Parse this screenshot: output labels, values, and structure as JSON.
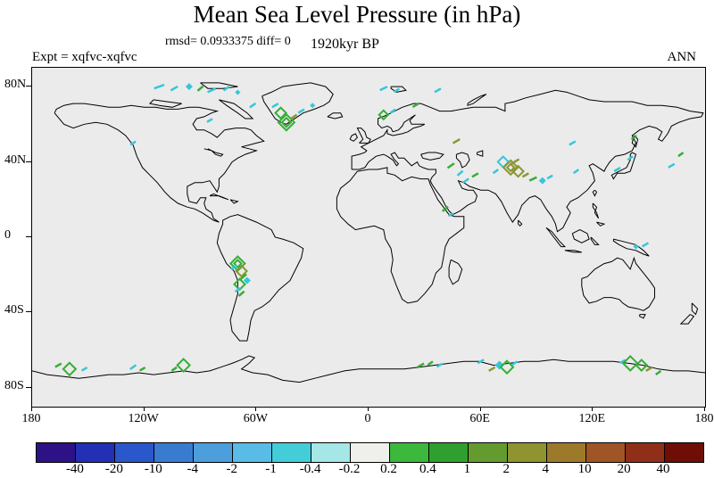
{
  "header": {
    "title": "Mean Sea Level Pressure (in hPa)",
    "stats": "rmsd= 0.0933375 diff= 0",
    "time_label": "1920kyr BP",
    "experiment": "Expt = xqfvc-xqfvc",
    "season": "ANN"
  },
  "axes": {
    "lat_ticks": [
      {
        "label": "80N",
        "lat": 80
      },
      {
        "label": "40N",
        "lat": 40
      },
      {
        "label": "0",
        "lat": 0
      },
      {
        "label": "40S",
        "lat": -40
      },
      {
        "label": "80S",
        "lat": -80
      }
    ],
    "lon_ticks": [
      {
        "label": "180",
        "lon": -180
      },
      {
        "label": "120W",
        "lon": -120
      },
      {
        "label": "60W",
        "lon": -60
      },
      {
        "label": "0",
        "lon": 0
      },
      {
        "label": "60E",
        "lon": 60
      },
      {
        "label": "120E",
        "lon": 120
      },
      {
        "label": "180",
        "lon": 180
      }
    ]
  },
  "chart_data": {
    "type": "heatmap",
    "title": "Mean Sea Level Pressure (in hPa)",
    "projection": "equirectangular",
    "lon_range": [
      -180,
      180
    ],
    "lat_range": [
      -90,
      90
    ],
    "rmsd": 0.0933375,
    "diff": 0,
    "time": "1920kyr BP",
    "experiment": "xqfvc-xqfvc",
    "season": "ANN",
    "map_background": "#ebebeb",
    "colorbar": {
      "levels": [
        -40,
        -20,
        -10,
        -4,
        -2,
        -1,
        -0.4,
        -0.2,
        0.2,
        0.4,
        1,
        2,
        4,
        10,
        20,
        40
      ],
      "labels": [
        "-40",
        "-20",
        "-10",
        "-4",
        "-2",
        "-1",
        "-0.4",
        "-0.2",
        "0.2",
        "0.4",
        "1",
        "2",
        "4",
        "10",
        "20",
        "40"
      ],
      "colors": [
        "#2D1186",
        "#232FB4",
        "#2B57CC",
        "#3A7BD2",
        "#4D9EDC",
        "#58BCE6",
        "#43CDD8",
        "#A5E6E6",
        "#EFEFEB",
        "#3CB83C",
        "#2FA02F",
        "#649B2F",
        "#8F9430",
        "#9C7A2A",
        "#9F5526",
        "#8F2F1A",
        "#6E0E06"
      ]
    },
    "mark_colors": {
      "cyan": "#35C6DA",
      "green": "#35AE35",
      "olive": "#8C9630"
    },
    "anomaly_marks": [
      {
        "lon": -112,
        "lat": 80,
        "shape": "dash",
        "c": "cyan",
        "s": 12,
        "rot": -20
      },
      {
        "lon": -104,
        "lat": 79,
        "shape": "dash",
        "c": "cyan",
        "s": 9,
        "rot": -30
      },
      {
        "lon": -96,
        "lat": 80,
        "shape": "fdiamond",
        "c": "cyan",
        "s": 4
      },
      {
        "lon": -90,
        "lat": 79,
        "shape": "dash",
        "c": "green",
        "s": 8,
        "rot": -40
      },
      {
        "lon": -84,
        "lat": 78,
        "shape": "dash",
        "c": "cyan",
        "s": 10,
        "rot": -25
      },
      {
        "lon": -76,
        "lat": 79,
        "shape": "dash",
        "c": "cyan",
        "s": 8,
        "rot": -35
      },
      {
        "lon": -70,
        "lat": 77,
        "shape": "fdiamond",
        "c": "cyan",
        "s": 3
      },
      {
        "lon": -85,
        "lat": 62,
        "shape": "dash",
        "c": "cyan",
        "s": 7,
        "rot": -30
      },
      {
        "lon": -62,
        "lat": 70,
        "shape": "dash",
        "c": "cyan",
        "s": 8,
        "rot": -35
      },
      {
        "lon": -50,
        "lat": 70,
        "shape": "dash",
        "c": "cyan",
        "s": 8,
        "rot": -30
      },
      {
        "lon": -47,
        "lat": 66,
        "shape": "diamond",
        "c": "green",
        "s": 6
      },
      {
        "lon": -44,
        "lat": 61,
        "shape": "diamond",
        "c": "green",
        "s": 9
      },
      {
        "lon": -44,
        "lat": 61,
        "shape": "diamond",
        "c": "green",
        "s": 5
      },
      {
        "lon": -40,
        "lat": 64,
        "shape": "dash",
        "c": "olive",
        "s": 8,
        "rot": -35
      },
      {
        "lon": -36,
        "lat": 67,
        "shape": "dash",
        "c": "cyan",
        "s": 8,
        "rot": -30
      },
      {
        "lon": -30,
        "lat": 70,
        "shape": "fdiamond",
        "c": "cyan",
        "s": 3
      },
      {
        "lon": 8,
        "lat": 79,
        "shape": "dash",
        "c": "cyan",
        "s": 9,
        "rot": -25
      },
      {
        "lon": 15,
        "lat": 78,
        "shape": "dash",
        "c": "cyan",
        "s": 7,
        "rot": -30
      },
      {
        "lon": 37,
        "lat": 78,
        "shape": "dash",
        "c": "cyan",
        "s": 8,
        "rot": -30
      },
      {
        "lon": 8,
        "lat": 65,
        "shape": "diamond",
        "c": "green",
        "s": 5
      },
      {
        "lon": 13,
        "lat": 67,
        "shape": "dash",
        "c": "cyan",
        "s": 7,
        "rot": -35
      },
      {
        "lon": 25,
        "lat": 70,
        "shape": "dash",
        "c": "green",
        "s": 7,
        "rot": -30
      },
      {
        "lon": 47,
        "lat": 51,
        "shape": "dash",
        "c": "olive",
        "s": 9,
        "rot": -30
      },
      {
        "lon": 109,
        "lat": 50,
        "shape": "dash",
        "c": "cyan",
        "s": 8,
        "rot": -30
      },
      {
        "lon": 142,
        "lat": 53,
        "shape": "dash",
        "c": "green",
        "s": 7,
        "rot": -35
      },
      {
        "lon": 44,
        "lat": 38,
        "shape": "dash",
        "c": "green",
        "s": 9,
        "rot": -35
      },
      {
        "lon": 49,
        "lat": 34,
        "shape": "dash",
        "c": "cyan",
        "s": 8,
        "rot": -40
      },
      {
        "lon": 52,
        "lat": 30,
        "shape": "dash",
        "c": "cyan",
        "s": 8,
        "rot": -35
      },
      {
        "lon": 57,
        "lat": 33,
        "shape": "dash",
        "c": "green",
        "s": 8,
        "rot": -30
      },
      {
        "lon": 68,
        "lat": 35,
        "shape": "dash",
        "c": "cyan",
        "s": 7,
        "rot": -35
      },
      {
        "lon": 72,
        "lat": 40,
        "shape": "diamond",
        "c": "cyan",
        "s": 6
      },
      {
        "lon": 76,
        "lat": 37,
        "shape": "diamond",
        "c": "olive",
        "s": 8
      },
      {
        "lon": 76,
        "lat": 37,
        "shape": "diamond",
        "c": "olive",
        "s": 4
      },
      {
        "lon": 80,
        "lat": 35,
        "shape": "diamond",
        "c": "olive",
        "s": 6
      },
      {
        "lon": 78,
        "lat": 40,
        "shape": "dash",
        "c": "olive",
        "s": 12,
        "rot": -30
      },
      {
        "lon": 84,
        "lat": 33,
        "shape": "dash",
        "c": "olive",
        "s": 8,
        "rot": -30
      },
      {
        "lon": 88,
        "lat": 31,
        "shape": "dash",
        "c": "green",
        "s": 9,
        "rot": -25
      },
      {
        "lon": 93,
        "lat": 30,
        "shape": "fdiamond",
        "c": "cyan",
        "s": 4
      },
      {
        "lon": 97,
        "lat": 32,
        "shape": "dash",
        "c": "cyan",
        "s": 7,
        "rot": -30
      },
      {
        "lon": 111,
        "lat": 35,
        "shape": "dash",
        "c": "cyan",
        "s": 7,
        "rot": -35
      },
      {
        "lon": 41,
        "lat": 15,
        "shape": "dash",
        "c": "green",
        "s": 8,
        "rot": -40
      },
      {
        "lon": 44,
        "lat": 12,
        "shape": "dash",
        "c": "cyan",
        "s": 6,
        "rot": -30
      },
      {
        "lon": 133,
        "lat": 36,
        "shape": "dash",
        "c": "cyan",
        "s": 8,
        "rot": -30
      },
      {
        "lon": 140,
        "lat": 42,
        "shape": "dash",
        "c": "cyan",
        "s": 7,
        "rot": -35
      },
      {
        "lon": 162,
        "lat": 38,
        "shape": "dash",
        "c": "cyan",
        "s": 8,
        "rot": -30
      },
      {
        "lon": 167,
        "lat": 44,
        "shape": "dash",
        "c": "green",
        "s": 7,
        "rot": -35
      },
      {
        "lon": -126,
        "lat": 50,
        "shape": "dash",
        "c": "cyan",
        "s": 7,
        "rot": -30
      },
      {
        "lon": -70,
        "lat": -14,
        "shape": "diamond",
        "c": "green",
        "s": 8
      },
      {
        "lon": -70,
        "lat": -14,
        "shape": "diamond",
        "c": "green",
        "s": 4
      },
      {
        "lon": -72,
        "lat": -16,
        "shape": "dash",
        "c": "cyan",
        "s": 8,
        "rot": -35
      },
      {
        "lon": -68,
        "lat": -18,
        "shape": "diamond",
        "c": "olive",
        "s": 6
      },
      {
        "lon": -67,
        "lat": -21,
        "shape": "dash",
        "c": "green",
        "s": 9,
        "rot": -40
      },
      {
        "lon": -69,
        "lat": -25,
        "shape": "diamond",
        "c": "green",
        "s": 6
      },
      {
        "lon": -70,
        "lat": -28,
        "shape": "dash",
        "c": "cyan",
        "s": 7,
        "rot": -35
      },
      {
        "lon": -68,
        "lat": -30,
        "shape": "dash",
        "c": "green",
        "s": 8,
        "rot": -40
      },
      {
        "lon": -65,
        "lat": -23,
        "shape": "fdiamond",
        "c": "cyan",
        "s": 4
      },
      {
        "lon": 148,
        "lat": -4,
        "shape": "dash",
        "c": "cyan",
        "s": 8,
        "rot": -30
      },
      {
        "lon": 143,
        "lat": -5,
        "shape": "fdiamond",
        "c": "cyan",
        "s": 3
      },
      {
        "lon": -166,
        "lat": -68,
        "shape": "dash",
        "c": "green",
        "s": 8,
        "rot": -30
      },
      {
        "lon": -160,
        "lat": -70,
        "shape": "diamond",
        "c": "green",
        "s": 7
      },
      {
        "lon": -152,
        "lat": -70,
        "shape": "dash",
        "c": "cyan",
        "s": 7,
        "rot": -30
      },
      {
        "lon": -126,
        "lat": -69,
        "shape": "dash",
        "c": "cyan",
        "s": 8,
        "rot": -35
      },
      {
        "lon": -121,
        "lat": -70,
        "shape": "dash",
        "c": "green",
        "s": 7,
        "rot": -30
      },
      {
        "lon": -99,
        "lat": -68,
        "shape": "diamond",
        "c": "green",
        "s": 7
      },
      {
        "lon": -104,
        "lat": -70,
        "shape": "dash",
        "c": "green",
        "s": 7,
        "rot": -35
      },
      {
        "lon": 28,
        "lat": -68,
        "shape": "dash",
        "c": "green",
        "s": 8,
        "rot": -30
      },
      {
        "lon": 33,
        "lat": -67,
        "shape": "dash",
        "c": "green",
        "s": 7,
        "rot": -35
      },
      {
        "lon": 38,
        "lat": -68,
        "shape": "dash",
        "c": "cyan",
        "s": 7,
        "rot": -30
      },
      {
        "lon": 60,
        "lat": -66,
        "shape": "dash",
        "c": "cyan",
        "s": 8,
        "rot": -30
      },
      {
        "lon": 70,
        "lat": -68,
        "shape": "fdiamond",
        "c": "cyan",
        "s": 5
      },
      {
        "lon": 74,
        "lat": -69,
        "shape": "diamond",
        "c": "green",
        "s": 7
      },
      {
        "lon": 66,
        "lat": -70,
        "shape": "dash",
        "c": "olive",
        "s": 8,
        "rot": -30
      },
      {
        "lon": 78,
        "lat": -67,
        "shape": "dash",
        "c": "cyan",
        "s": 7,
        "rot": -35
      },
      {
        "lon": 136,
        "lat": -66,
        "shape": "dash",
        "c": "cyan",
        "s": 7,
        "rot": -30
      },
      {
        "lon": 140,
        "lat": -67,
        "shape": "diamond",
        "c": "green",
        "s": 8
      },
      {
        "lon": 146,
        "lat": -68,
        "shape": "diamond",
        "c": "green",
        "s": 6
      },
      {
        "lon": 150,
        "lat": -70,
        "shape": "dash",
        "c": "olive",
        "s": 8,
        "rot": -30
      },
      {
        "lon": 155,
        "lat": -72,
        "shape": "dash",
        "c": "green",
        "s": 7,
        "rot": -35
      }
    ]
  }
}
